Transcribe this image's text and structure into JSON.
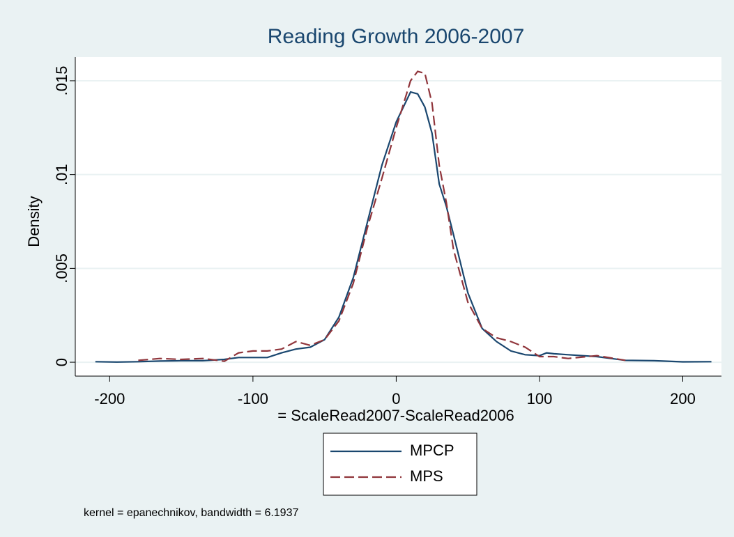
{
  "chart_data": {
    "type": "line",
    "title": "Reading Growth 2006-2007",
    "x_label": "= ScaleRead2007-ScaleRead2006",
    "y_label": "Density",
    "note": "kernel = epanechnikov, bandwidth = 6.1937",
    "x": [
      -210,
      -195,
      -180,
      -165,
      -150,
      -135,
      -120,
      -110,
      -100,
      -90,
      -80,
      -70,
      -60,
      -50,
      -40,
      -30,
      -20,
      -10,
      0,
      10,
      15,
      20,
      25,
      30,
      35,
      40,
      50,
      60,
      70,
      80,
      90,
      100,
      105,
      110,
      120,
      140,
      160,
      180,
      200,
      220
    ],
    "series": [
      {
        "name": "MPCP",
        "color": "#1a476f",
        "line_style": "solid",
        "values": [
          3e-05,
          1e-05,
          3e-05,
          6e-05,
          8e-05,
          8e-05,
          0.00015,
          0.00025,
          0.00025,
          0.00025,
          0.0005,
          0.0007,
          0.0008,
          0.0012,
          0.0024,
          0.0045,
          0.0075,
          0.0105,
          0.0128,
          0.0144,
          0.0143,
          0.0136,
          0.0122,
          0.0095,
          0.0083,
          0.0068,
          0.0037,
          0.0018,
          0.0011,
          0.0006,
          0.0004,
          0.00035,
          0.0005,
          0.00045,
          0.0004,
          0.0003,
          0.0001,
          8e-05,
          2e-05,
          3e-05
        ]
      },
      {
        "name": "MPS",
        "color": "#90353b",
        "line_style": "dashed",
        "values": [
          null,
          null,
          0.0001,
          0.0002,
          0.00015,
          0.0002,
          5e-05,
          0.0005,
          0.0006,
          0.0006,
          0.0007,
          0.0011,
          0.0009,
          0.0012,
          0.0022,
          0.0042,
          0.0072,
          0.0098,
          0.0125,
          0.015,
          0.0155,
          0.0154,
          0.0138,
          0.0105,
          0.0085,
          0.006,
          0.0032,
          0.0018,
          0.0013,
          0.0011,
          0.0008,
          0.0003,
          0.0003,
          0.0003,
          0.0002,
          0.00035,
          0.0001,
          null,
          null,
          null
        ]
      }
    ],
    "xlim": [
      -224,
      227
    ],
    "ylim": [
      -0.00074,
      0.01626
    ],
    "xticks": [
      -200,
      -100,
      0,
      100,
      200
    ],
    "yticks": [
      0,
      {
        "value": 0.005,
        "label": ".005"
      },
      {
        "value": 0.01,
        "label": ".01"
      },
      {
        "value": 0.015,
        "label": ".015"
      }
    ],
    "grid": true
  }
}
